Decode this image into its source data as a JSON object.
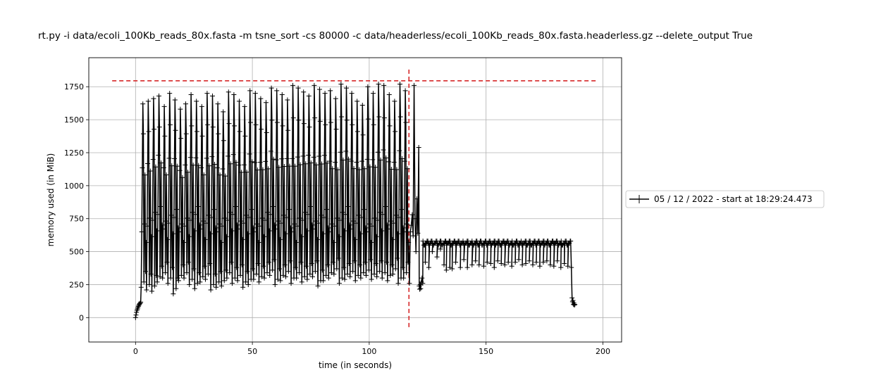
{
  "chart_data": {
    "type": "line",
    "title": "rt.py -i data/ecoli_100Kb_reads_80x.fasta -m tsne_sort -cs 80000 -c data/headerless/ecoli_100Kb_reads_80x.fasta.headerless.gz --delete_output True",
    "xlabel": "time (in seconds)",
    "ylabel": "memory used (in MiB)",
    "xlim": [
      -20,
      208
    ],
    "ylim": [
      -185,
      1970
    ],
    "xticks": [
      0,
      50,
      100,
      150,
      200
    ],
    "yticks": [
      0,
      250,
      500,
      750,
      1000,
      1250,
      1500,
      1750
    ],
    "grid": true,
    "legend_position": "right",
    "series": [
      {
        "name": "05 / 12 / 2022 - start at 18:29:24.473",
        "color": "#000000",
        "marker": "+",
        "startup": [
          [
            0,
            0
          ],
          [
            0.2,
            20
          ],
          [
            0.4,
            40
          ],
          [
            0.6,
            55
          ],
          [
            0.8,
            65
          ],
          [
            1.0,
            75
          ],
          [
            1.2,
            85
          ],
          [
            1.4,
            92
          ],
          [
            1.6,
            100
          ],
          [
            1.8,
            105
          ],
          [
            2.0,
            110
          ],
          [
            2.2,
            118
          ]
        ],
        "phase1": {
          "t_start": 2.4,
          "t_end": 117.0,
          "cycles": 50,
          "peaks": [
            1620,
            1640,
            1660,
            1680,
            1600,
            1700,
            1650,
            1580,
            1620,
            1690,
            1640,
            1600,
            1700,
            1680,
            1620,
            1560,
            1710,
            1690,
            1640,
            1600,
            1720,
            1700,
            1660,
            1630,
            1740,
            1720,
            1690,
            1650,
            1760,
            1740,
            1710,
            1680,
            1760,
            1730,
            1700,
            1720,
            1660,
            1770,
            1740,
            1700,
            1640,
            1610,
            1750,
            1700,
            1770,
            1760,
            1690,
            1640,
            1770,
            1720
          ],
          "troughs": [
            230,
            210,
            200,
            270,
            300,
            260,
            180,
            280,
            300,
            250,
            220,
            270,
            290,
            210,
            230,
            240,
            300,
            260,
            280,
            230,
            250,
            290,
            270,
            300,
            320,
            250,
            280,
            310,
            260,
            300,
            270,
            290,
            310,
            240,
            280,
            300,
            330,
            260,
            290,
            310,
            280,
            300,
            320,
            290,
            310,
            300,
            280,
            330,
            260,
            300
          ]
        },
        "drop": [
          [
            117.2,
            260
          ],
          [
            117.6,
            650
          ],
          [
            118,
            700
          ],
          [
            118.4,
            780
          ],
          [
            118.8,
            620
          ],
          [
            119.2,
            1760
          ],
          [
            119.6,
            750
          ],
          [
            120,
            500
          ],
          [
            120.4,
            900
          ],
          [
            120.8,
            640
          ],
          [
            121.2,
            1290
          ],
          [
            121.4,
            240
          ],
          [
            121.6,
            215
          ],
          [
            121.8,
            250
          ],
          [
            122.0,
            220
          ],
          [
            122.3,
            270
          ],
          [
            122.6,
            300
          ],
          [
            122.9,
            260
          ]
        ],
        "phase2": {
          "t_start": 123.0,
          "t_end": 186.0,
          "high": 580,
          "dips": [
            [
              124,
              420
            ],
            [
              125.5,
              380
            ],
            [
              127,
              500
            ],
            [
              129,
              460
            ],
            [
              130.5,
              520
            ],
            [
              132,
              400
            ],
            [
              133,
              360
            ],
            [
              134.5,
              380
            ],
            [
              135.5,
              370
            ],
            [
              137,
              420
            ],
            [
              139,
              380
            ],
            [
              140.5,
              440
            ],
            [
              142,
              380
            ],
            [
              144,
              400
            ],
            [
              145.5,
              430
            ],
            [
              147,
              400
            ],
            [
              149,
              390
            ],
            [
              150.5,
              420
            ],
            [
              152,
              410
            ],
            [
              153.5,
              380
            ],
            [
              155,
              430
            ],
            [
              156.5,
              410
            ],
            [
              158,
              400
            ],
            [
              159.5,
              420
            ],
            [
              161,
              390
            ],
            [
              162.5,
              420
            ],
            [
              164,
              440
            ],
            [
              165.5,
              400
            ],
            [
              167,
              410
            ],
            [
              168.5,
              430
            ],
            [
              170,
              400
            ],
            [
              171.5,
              420
            ],
            [
              173,
              390
            ],
            [
              174.5,
              420
            ],
            [
              176,
              430
            ],
            [
              177.5,
              400
            ],
            [
              179,
              390
            ],
            [
              180.5,
              430
            ],
            [
              182,
              380
            ],
            [
              183.5,
              410
            ],
            [
              185,
              390
            ]
          ]
        },
        "tail": [
          [
            186.2,
            580
          ],
          [
            186.5,
            380
          ],
          [
            186.8,
            150
          ],
          [
            187.0,
            120
          ],
          [
            187.2,
            130
          ],
          [
            187.4,
            100
          ],
          [
            187.6,
            110
          ],
          [
            187.8,
            95
          ],
          [
            188.0,
            100
          ]
        ]
      }
    ],
    "reference_lines": [
      {
        "orientation": "horizontal",
        "value": 1795,
        "from": -10,
        "to": 198,
        "color": "#d62728",
        "style": "dashed"
      },
      {
        "orientation": "vertical",
        "value": 117,
        "from": -90,
        "to": 1880,
        "color": "#d62728",
        "style": "dashed"
      }
    ]
  }
}
